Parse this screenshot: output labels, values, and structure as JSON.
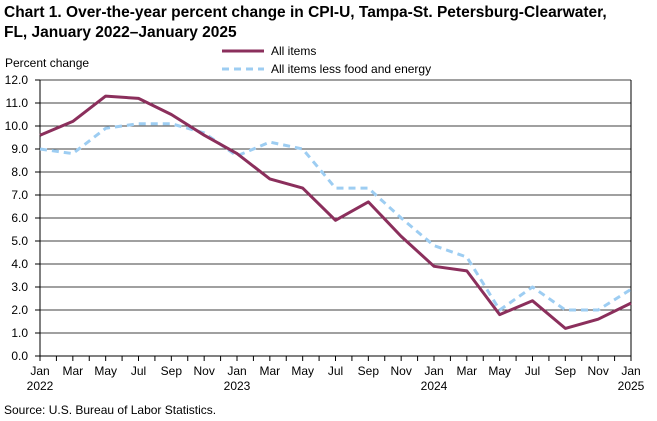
{
  "title_line1": "Chart 1. Over-the-year percent change in CPI-U, Tampa-St. Petersburg-Clearwater,",
  "title_line2": "FL, January 2022–January 2025",
  "source": "Source: U.S. Bureau of Labor Statistics.",
  "chart_data": {
    "type": "line",
    "ylabel": "Percent change",
    "ylim": [
      0,
      12
    ],
    "ytick_step": 1,
    "grid": true,
    "legend_position": "top-center",
    "months": 37,
    "x_ticks": [
      {
        "label": "Jan",
        "sub": "2022"
      },
      {
        "label": "Mar",
        "sub": ""
      },
      {
        "label": "May",
        "sub": ""
      },
      {
        "label": "Jul",
        "sub": ""
      },
      {
        "label": "Sep",
        "sub": ""
      },
      {
        "label": "Nov",
        "sub": ""
      },
      {
        "label": "Jan",
        "sub": "2023"
      },
      {
        "label": "Mar",
        "sub": ""
      },
      {
        "label": "May",
        "sub": ""
      },
      {
        "label": "Jul",
        "sub": ""
      },
      {
        "label": "Sep",
        "sub": ""
      },
      {
        "label": "Nov",
        "sub": ""
      },
      {
        "label": "Jan",
        "sub": "2024"
      },
      {
        "label": "Mar",
        "sub": ""
      },
      {
        "label": "May",
        "sub": ""
      },
      {
        "label": "Jul",
        "sub": ""
      },
      {
        "label": "Sep",
        "sub": ""
      },
      {
        "label": "Nov",
        "sub": ""
      },
      {
        "label": "Jan",
        "sub": "2025"
      }
    ],
    "series": [
      {
        "name": "All items",
        "color": "#8B2F5C",
        "dash": false,
        "values": [
          9.6,
          10.2,
          11.3,
          11.2,
          10.5,
          9.6,
          8.8,
          7.7,
          7.3,
          5.9,
          6.7,
          5.2,
          3.9,
          3.7,
          1.8,
          2.4,
          1.2,
          1.6,
          2.3
        ]
      },
      {
        "name": "All items less food and energy",
        "color": "#9DCDF2",
        "dash": true,
        "values": [
          9.0,
          8.8,
          9.9,
          10.1,
          10.1,
          9.7,
          8.7,
          9.3,
          9.0,
          7.3,
          7.3,
          6.0,
          4.8,
          4.3,
          2.0,
          3.0,
          2.0,
          2.0,
          2.9
        ]
      }
    ]
  }
}
